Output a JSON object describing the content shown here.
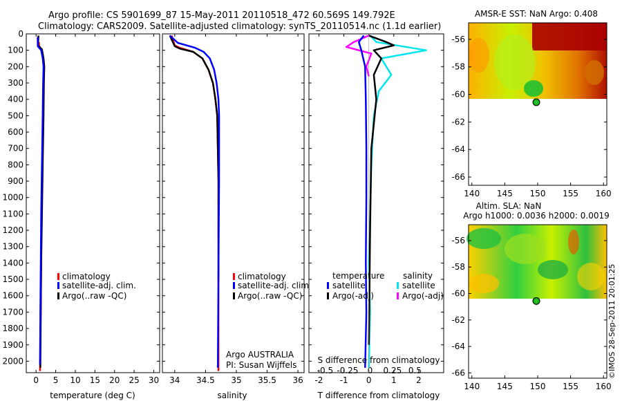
{
  "title_line1": "Argo profile: CS 5901699_87 15-May-2011 20110518_472 60.569S 149.792E",
  "title_line2": "Climatology: CARS2009. Satellite-adjusted climatology: synTS_20110514.nc (1.1d earlier)",
  "credit": "©IMOS 28-Sep-2011 20:01:25",
  "colors": {
    "climatology": "#ff0000",
    "satellite": "#0000ff",
    "argo": "#000000",
    "sat_sal": "#00e5ee",
    "argo_sal": "#ff00ff"
  },
  "chart_data": [
    {
      "type": "line",
      "id": "temperature",
      "xlabel": "temperature (deg C)",
      "ylabel": "",
      "xlim": [
        -2.5,
        31.5
      ],
      "ylim": [
        2070,
        0
      ],
      "xticks": [
        0,
        5,
        10,
        15,
        20,
        25,
        30
      ],
      "yticks": [
        0,
        100,
        200,
        300,
        400,
        500,
        600,
        700,
        800,
        900,
        1000,
        1100,
        1200,
        1300,
        1400,
        1500,
        1600,
        1700,
        1800,
        1900,
        2000
      ],
      "legend": [
        "climatology",
        "satellite-adj. clim.",
        "Argo(..raw -QC)"
      ],
      "series": [
        {
          "name": "climatology",
          "color": "#ff0000",
          "x": [
            0.7,
            0.8,
            1.4,
            1.8,
            2.0,
            1.9,
            1.8,
            1.6,
            1.4,
            1.3,
            1.2,
            1.1,
            1.0
          ],
          "y": [
            50,
            75,
            100,
            150,
            200,
            300,
            500,
            800,
            1100,
            1400,
            1700,
            1900,
            2060
          ]
        },
        {
          "name": "Argo(..raw -QC)",
          "color": "#000000",
          "x": [
            0.6,
            0.5,
            1.5,
            1.9,
            2.1,
            2.0,
            1.9,
            1.7,
            1.5,
            1.3,
            1.2,
            1.1
          ],
          "y": [
            10,
            70,
            95,
            150,
            200,
            300,
            500,
            800,
            1100,
            1400,
            1700,
            2040
          ]
        },
        {
          "name": "satellite-adj. clim.",
          "color": "#0000ff",
          "x": [
            0.4,
            0.45,
            1.3,
            1.7,
            1.9,
            1.8,
            1.7,
            1.5,
            1.3,
            1.2,
            1.1,
            1.0
          ],
          "y": [
            20,
            75,
            100,
            150,
            200,
            300,
            500,
            800,
            1100,
            1400,
            1700,
            2020
          ]
        }
      ]
    },
    {
      "type": "line",
      "id": "salinity",
      "xlabel": "salinity",
      "ylabel": "",
      "xlim": [
        33.8,
        36.1
      ],
      "ylim": [
        2070,
        0
      ],
      "xticks": [
        34,
        34.5,
        35,
        35.5,
        36
      ],
      "xticklabels": [
        "34",
        "34.5",
        "35",
        "35.5",
        "36"
      ],
      "legend": [
        "climatology",
        "satellite-adj. clim.",
        "Argo(..raw -QC)"
      ],
      "annotations": [
        "Argo AUSTRALIA",
        "PI: Susan Wijffels"
      ],
      "series": [
        {
          "name": "climatology",
          "color": "#ff0000",
          "x": [
            33.95,
            34.0,
            34.08,
            34.3,
            34.45,
            34.55,
            34.62,
            34.66,
            34.69,
            34.7,
            34.71,
            34.71,
            34.71
          ],
          "y": [
            10,
            70,
            85,
            110,
            150,
            220,
            300,
            400,
            500,
            700,
            900,
            1500,
            2060
          ]
        },
        {
          "name": "Argo(..raw -QC)",
          "color": "#000000",
          "x": [
            33.92,
            34.0,
            34.08,
            34.3,
            34.45,
            34.55,
            34.62,
            34.66,
            34.69,
            34.7,
            34.71,
            34.71
          ],
          "y": [
            10,
            75,
            90,
            110,
            150,
            220,
            300,
            400,
            500,
            700,
            900,
            1500
          ]
        },
        {
          "name": "satellite-adj. clim.",
          "color": "#0000ff",
          "x": [
            33.92,
            34.05,
            34.33,
            34.47,
            34.57,
            34.64,
            34.68,
            34.71,
            34.72,
            34.72,
            34.72,
            34.7
          ],
          "y": [
            10,
            55,
            85,
            110,
            150,
            220,
            300,
            400,
            500,
            700,
            900,
            2040
          ]
        }
      ]
    },
    {
      "type": "line",
      "id": "difference",
      "xlabel": "T difference from climatology",
      "xlabel_top": "S difference from climatology",
      "xlim": [
        -2.4,
        3.0
      ],
      "ylim": [
        2070,
        0
      ],
      "xticks": [
        -2,
        -1,
        0,
        1,
        2
      ],
      "xticks_top": [
        -0.5,
        -0.25,
        0,
        0.25,
        0.5
      ],
      "xticklabels_top": [
        "-0.5",
        "-0.25",
        "0",
        "0.25",
        "0.5"
      ],
      "legend_left_title": "temperature",
      "legend_right_title": "salinity",
      "legend": [
        "satellite",
        "Argo(-adj)",
        "satellite",
        "Argo(-adj)"
      ],
      "series": [
        {
          "name": "satellite (salinity)",
          "color": "#00e5ee",
          "x": [
            0.05,
            0.3,
            2.3,
            0.5,
            0.9,
            0.4,
            0.2,
            0.1,
            0.05,
            0.0,
            0.05,
            0.0
          ],
          "y": [
            10,
            50,
            100,
            150,
            250,
            350,
            500,
            800,
            1100,
            1400,
            1700,
            2040
          ]
        },
        {
          "name": "Argo(-adj) (salinity)",
          "color": "#ff00ff",
          "x": [
            0.0,
            -0.6,
            -0.9,
            0.1,
            -0.1,
            0.0
          ],
          "y": [
            10,
            50,
            80,
            120,
            200,
            260
          ]
        },
        {
          "name": "Argo(-adj) (temperature)",
          "color": "#000000",
          "x": [
            0.0,
            0.7,
            1.0,
            0.2,
            0.5,
            0.2,
            0.3,
            0.1,
            0.05,
            0.0
          ],
          "y": [
            10,
            50,
            70,
            100,
            150,
            250,
            400,
            700,
            1200,
            1900
          ]
        },
        {
          "name": "satellite (temperature)",
          "color": "#0000ff",
          "x": [
            -0.2,
            -0.4,
            -0.3,
            -0.15,
            -0.12,
            -0.1,
            -0.1,
            -0.12,
            -0.1,
            -0.15
          ],
          "y": [
            10,
            50,
            100,
            200,
            400,
            700,
            1000,
            1400,
            1700,
            2040
          ]
        }
      ]
    },
    {
      "type": "heatmap",
      "id": "sst_map",
      "title": "AMSR-E SST: NaN Argo: 0.408",
      "xlim": [
        139.5,
        160.5
      ],
      "ylim": [
        -66.6,
        -54.8
      ],
      "xticks": [
        140,
        145,
        150,
        155,
        160
      ],
      "yticks": [
        -56,
        -58,
        -60,
        -62,
        -64,
        -66
      ],
      "data_extent_lat": [
        -60,
        -54.8
      ],
      "argo_position": {
        "lon": 149.792,
        "lat": -60.569
      }
    },
    {
      "type": "heatmap",
      "id": "sla_map",
      "title_line1": "Altim. SLA: NaN",
      "title_line2": "Argo h1000: 0.0036 h2000: 0.0019",
      "xlim": [
        139.5,
        160.5
      ],
      "ylim": [
        -66.4,
        -54.8
      ],
      "xticks": [
        140,
        145,
        150,
        155,
        160
      ],
      "yticks": [
        -56,
        -58,
        -60,
        -62,
        -64,
        -66
      ],
      "data_extent_lat": [
        -60,
        -54.8
      ],
      "argo_position": {
        "lon": 149.792,
        "lat": -60.569
      }
    }
  ]
}
